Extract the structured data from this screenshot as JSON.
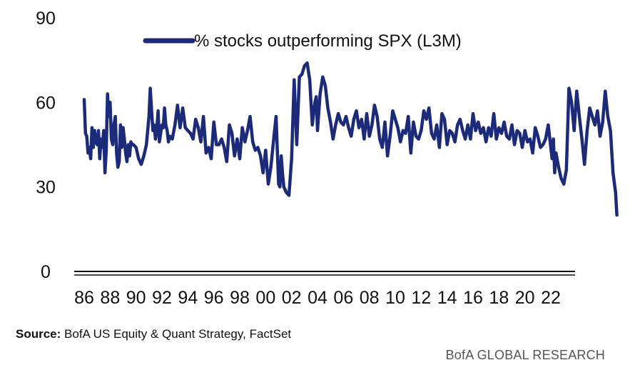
{
  "chart_data": {
    "type": "line",
    "title": "",
    "xlabel": "",
    "ylabel": "",
    "ylim": [
      0,
      90
    ],
    "y_ticks": [
      "0",
      "30",
      "60",
      "90"
    ],
    "x_ticks": [
      "86",
      "88",
      "90",
      "92",
      "94",
      "96",
      "98",
      "00",
      "02",
      "04",
      "06",
      "08",
      "10",
      "12",
      "14",
      "16",
      "18",
      "20",
      "22"
    ],
    "x_tick_years": [
      1986,
      1988,
      1990,
      1992,
      1994,
      1996,
      1998,
      2000,
      2002,
      2004,
      2006,
      2008,
      2010,
      2012,
      2014,
      2016,
      2018,
      2020,
      2022
    ],
    "legend_position": "top-center",
    "grid": false,
    "series": [
      {
        "name": "% stocks outperforming SPX (L3M)",
        "color": "#1c2a7a",
        "points": [
          [
            1986.0,
            61
          ],
          [
            1986.1,
            49
          ],
          [
            1986.2,
            48
          ],
          [
            1986.3,
            42
          ],
          [
            1986.4,
            44
          ],
          [
            1986.5,
            40
          ],
          [
            1986.6,
            51
          ],
          [
            1986.7,
            44
          ],
          [
            1986.8,
            50
          ],
          [
            1986.9,
            46
          ],
          [
            1987.0,
            45
          ],
          [
            1987.1,
            50
          ],
          [
            1987.2,
            40
          ],
          [
            1987.3,
            47
          ],
          [
            1987.4,
            44
          ],
          [
            1987.5,
            50
          ],
          [
            1987.6,
            35
          ],
          [
            1987.7,
            43
          ],
          [
            1987.8,
            63
          ],
          [
            1987.9,
            55
          ],
          [
            1988.0,
            60
          ],
          [
            1988.1,
            47
          ],
          [
            1988.2,
            45
          ],
          [
            1988.3,
            52
          ],
          [
            1988.4,
            55
          ],
          [
            1988.5,
            42
          ],
          [
            1988.6,
            37
          ],
          [
            1988.7,
            39
          ],
          [
            1988.8,
            52
          ],
          [
            1988.9,
            44
          ],
          [
            1989.0,
            51
          ],
          [
            1989.1,
            47
          ],
          [
            1989.2,
            42
          ],
          [
            1989.3,
            39
          ],
          [
            1989.4,
            45
          ],
          [
            1989.5,
            41
          ],
          [
            1989.6,
            46
          ],
          [
            1989.7,
            45
          ],
          [
            1989.8,
            45
          ],
          [
            1990.0,
            44
          ],
          [
            1990.2,
            40
          ],
          [
            1990.4,
            38
          ],
          [
            1990.6,
            41
          ],
          [
            1990.8,
            45
          ],
          [
            1991.0,
            55
          ],
          [
            1991.1,
            65
          ],
          [
            1991.2,
            57
          ],
          [
            1991.3,
            50
          ],
          [
            1991.4,
            52
          ],
          [
            1991.5,
            47
          ],
          [
            1991.6,
            50
          ],
          [
            1991.7,
            57
          ],
          [
            1991.8,
            46
          ],
          [
            1991.9,
            49
          ],
          [
            1992.0,
            52
          ],
          [
            1992.1,
            51
          ],
          [
            1992.2,
            58
          ],
          [
            1992.3,
            52
          ],
          [
            1992.4,
            50
          ],
          [
            1992.5,
            46
          ],
          [
            1992.6,
            48
          ],
          [
            1992.8,
            47
          ],
          [
            1993.0,
            52
          ],
          [
            1993.2,
            59
          ],
          [
            1993.4,
            51
          ],
          [
            1993.6,
            58
          ],
          [
            1993.8,
            51
          ],
          [
            1994.0,
            50
          ],
          [
            1994.2,
            49
          ],
          [
            1994.4,
            47
          ],
          [
            1994.6,
            54
          ],
          [
            1994.8,
            51
          ],
          [
            1995.0,
            46
          ],
          [
            1995.2,
            55
          ],
          [
            1995.4,
            42
          ],
          [
            1995.6,
            44
          ],
          [
            1995.8,
            40
          ],
          [
            1996.0,
            53
          ],
          [
            1996.2,
            45
          ],
          [
            1996.4,
            45
          ],
          [
            1996.6,
            47
          ],
          [
            1996.8,
            44
          ],
          [
            1997.0,
            39
          ],
          [
            1997.2,
            52
          ],
          [
            1997.4,
            49
          ],
          [
            1997.6,
            41
          ],
          [
            1997.8,
            47
          ],
          [
            1998.0,
            40
          ],
          [
            1998.2,
            51
          ],
          [
            1998.4,
            46
          ],
          [
            1998.6,
            50
          ],
          [
            1998.8,
            55
          ],
          [
            1999.0,
            46
          ],
          [
            1999.2,
            43
          ],
          [
            1999.4,
            44
          ],
          [
            1999.6,
            41
          ],
          [
            1999.8,
            35
          ],
          [
            2000.0,
            43
          ],
          [
            2000.2,
            31
          ],
          [
            2000.4,
            37
          ],
          [
            2000.6,
            46
          ],
          [
            2000.8,
            55
          ],
          [
            2001.0,
            31
          ],
          [
            2001.1,
            30
          ],
          [
            2001.2,
            41
          ],
          [
            2001.3,
            35
          ],
          [
            2001.4,
            30
          ],
          [
            2001.6,
            28
          ],
          [
            2001.8,
            27
          ],
          [
            2002.0,
            40
          ],
          [
            2002.2,
            68
          ],
          [
            2002.4,
            45
          ],
          [
            2002.6,
            69
          ],
          [
            2002.8,
            70
          ],
          [
            2003.0,
            73
          ],
          [
            2003.2,
            74
          ],
          [
            2003.4,
            68
          ],
          [
            2003.6,
            52
          ],
          [
            2003.8,
            60
          ],
          [
            2003.9,
            62
          ],
          [
            2004.0,
            50
          ],
          [
            2004.2,
            63
          ],
          [
            2004.4,
            69
          ],
          [
            2004.6,
            66
          ],
          [
            2004.8,
            58
          ],
          [
            2005.0,
            53
          ],
          [
            2005.2,
            47
          ],
          [
            2005.4,
            52
          ],
          [
            2005.6,
            56
          ],
          [
            2005.8,
            53
          ],
          [
            2006.0,
            52
          ],
          [
            2006.2,
            55
          ],
          [
            2006.4,
            51
          ],
          [
            2006.6,
            48
          ],
          [
            2006.8,
            54
          ],
          [
            2007.0,
            57
          ],
          [
            2007.2,
            51
          ],
          [
            2007.4,
            54
          ],
          [
            2007.6,
            47
          ],
          [
            2007.8,
            56
          ],
          [
            2008.0,
            48
          ],
          [
            2008.2,
            52
          ],
          [
            2008.4,
            59
          ],
          [
            2008.6,
            55
          ],
          [
            2008.8,
            47
          ],
          [
            2009.0,
            44
          ],
          [
            2009.2,
            53
          ],
          [
            2009.4,
            41
          ],
          [
            2009.6,
            48
          ],
          [
            2009.8,
            57
          ],
          [
            2010.0,
            54
          ],
          [
            2010.2,
            51
          ],
          [
            2010.4,
            46
          ],
          [
            2010.6,
            50
          ],
          [
            2010.8,
            49
          ],
          [
            2011.0,
            55
          ],
          [
            2011.2,
            42
          ],
          [
            2011.4,
            53
          ],
          [
            2011.6,
            48
          ],
          [
            2011.8,
            47
          ],
          [
            2012.0,
            50
          ],
          [
            2012.2,
            57
          ],
          [
            2012.4,
            54
          ],
          [
            2012.6,
            58
          ],
          [
            2012.8,
            49
          ],
          [
            2013.0,
            47
          ],
          [
            2013.2,
            52
          ],
          [
            2013.4,
            44
          ],
          [
            2013.6,
            56
          ],
          [
            2013.8,
            54
          ],
          [
            2014.0,
            45
          ],
          [
            2014.2,
            50
          ],
          [
            2014.4,
            49
          ],
          [
            2014.6,
            46
          ],
          [
            2014.8,
            52
          ],
          [
            2015.0,
            54
          ],
          [
            2015.2,
            50
          ],
          [
            2015.4,
            47
          ],
          [
            2015.6,
            52
          ],
          [
            2015.8,
            47
          ],
          [
            2016.0,
            56
          ],
          [
            2016.2,
            50
          ],
          [
            2016.4,
            53
          ],
          [
            2016.6,
            49
          ],
          [
            2016.8,
            51
          ],
          [
            2017.0,
            46
          ],
          [
            2017.2,
            51
          ],
          [
            2017.4,
            48
          ],
          [
            2017.6,
            56
          ],
          [
            2017.8,
            47
          ],
          [
            2018.0,
            51
          ],
          [
            2018.2,
            49
          ],
          [
            2018.4,
            53
          ],
          [
            2018.6,
            48
          ],
          [
            2018.8,
            47
          ],
          [
            2019.0,
            52
          ],
          [
            2019.2,
            45
          ],
          [
            2019.4,
            50
          ],
          [
            2019.6,
            49
          ],
          [
            2019.8,
            44
          ],
          [
            2020.0,
            50
          ],
          [
            2020.2,
            46
          ],
          [
            2020.4,
            47
          ],
          [
            2020.6,
            42
          ],
          [
            2020.8,
            51
          ],
          [
            2021.0,
            48
          ],
          [
            2021.2,
            44
          ],
          [
            2021.4,
            45
          ],
          [
            2021.6,
            47
          ],
          [
            2021.8,
            52
          ],
          [
            2022.0,
            44
          ],
          [
            2022.1,
            40
          ],
          [
            2022.2,
            47
          ],
          [
            2022.3,
            35
          ],
          [
            2022.4,
            42
          ],
          [
            2022.6,
            37
          ],
          [
            2022.8,
            33
          ],
          [
            2023.0,
            31
          ],
          [
            2023.2,
            36
          ],
          [
            2023.4,
            65
          ],
          [
            2023.6,
            60
          ],
          [
            2023.8,
            50
          ],
          [
            2024.0,
            64
          ],
          [
            2024.2,
            55
          ],
          [
            2024.4,
            47
          ],
          [
            2024.6,
            38
          ],
          [
            2024.8,
            50
          ],
          [
            2025.0,
            58
          ],
          [
            2025.2,
            55
          ],
          [
            2025.4,
            52
          ],
          [
            2025.6,
            57
          ],
          [
            2025.8,
            48
          ],
          [
            2026.0,
            53
          ],
          [
            2026.2,
            64
          ],
          [
            2026.4,
            55
          ],
          [
            2026.6,
            50
          ],
          [
            2026.8,
            35
          ],
          [
            2027.0,
            28
          ],
          [
            2027.1,
            20
          ]
        ]
      }
    ]
  },
  "footer": {
    "source_label": "Source:",
    "source_text": "BofA US Equity  & Quant Strategy, FactSet",
    "brand": "BofA GLOBAL RESEARCH"
  }
}
